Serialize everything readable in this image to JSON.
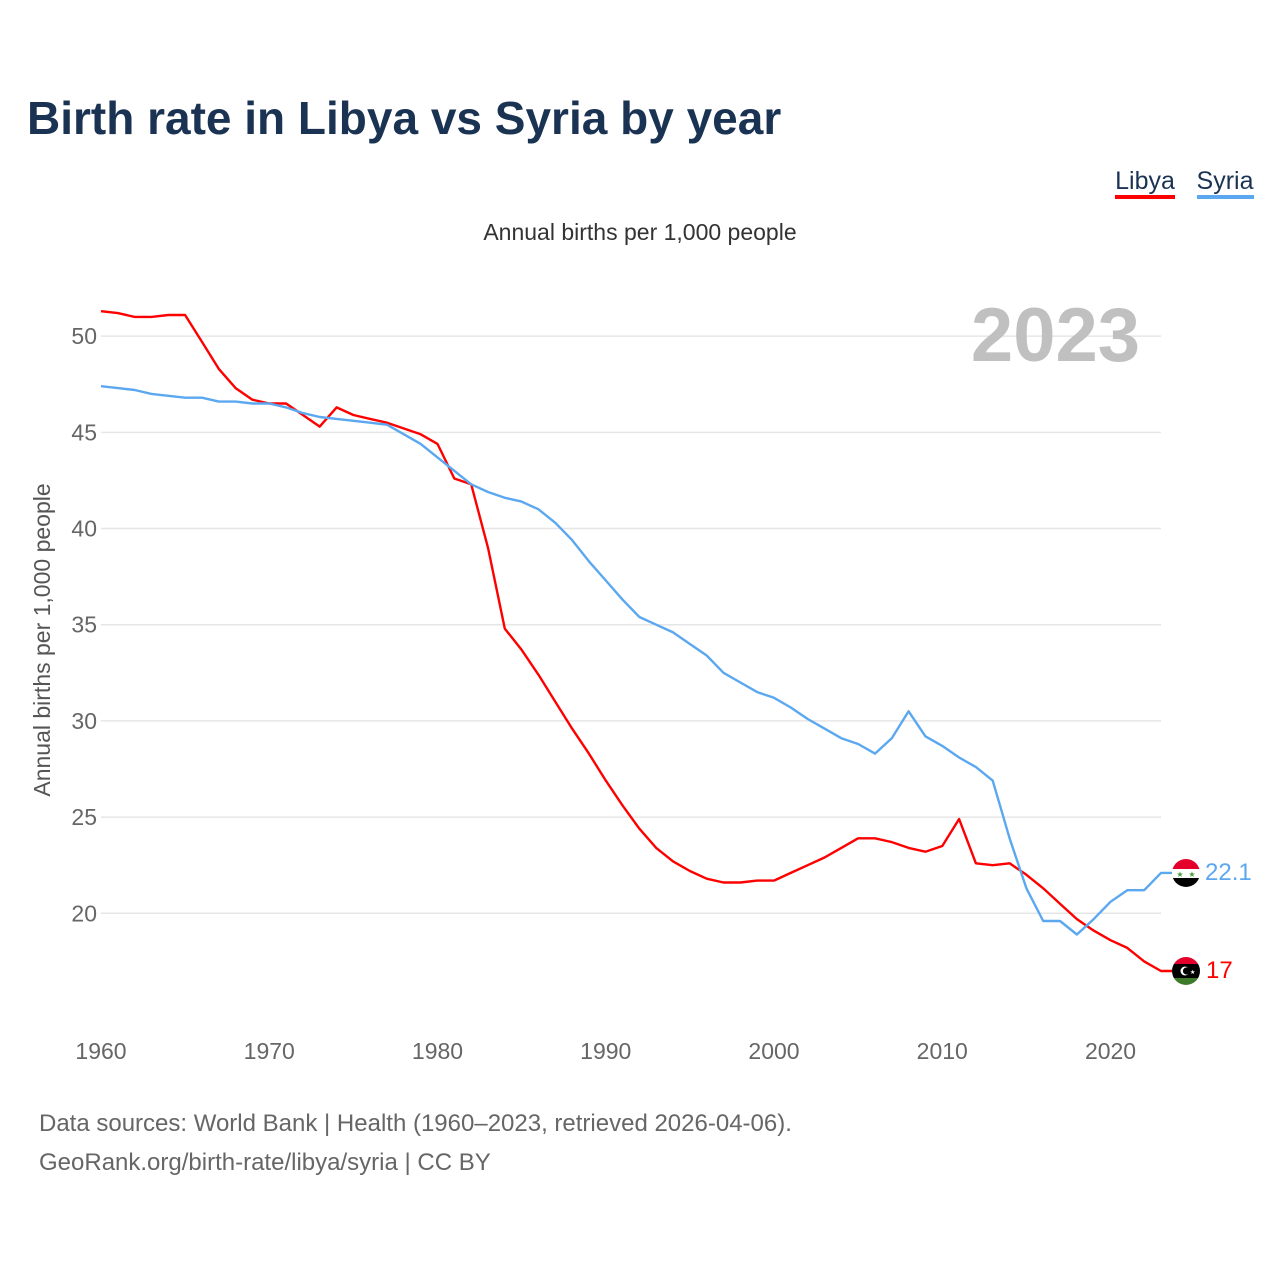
{
  "chart_data": {
    "type": "line",
    "title": "Birth rate in Libya vs Syria by year",
    "subtitle": "Annual births per 1,000 people",
    "ylabel": "Annual births per 1,000 people",
    "xlabel": "",
    "year_label": "2023",
    "xlim": [
      1960,
      2023
    ],
    "ylim": [
      15,
      52.4
    ],
    "x_ticks": [
      1960,
      1970,
      1980,
      1990,
      2000,
      2010,
      2020
    ],
    "y_ticks": [
      20,
      25,
      30,
      35,
      40,
      45,
      50
    ],
    "grid": true,
    "legend_position": "top-right",
    "x": [
      1960,
      1961,
      1962,
      1963,
      1964,
      1965,
      1966,
      1967,
      1968,
      1969,
      1970,
      1971,
      1972,
      1973,
      1974,
      1975,
      1976,
      1977,
      1978,
      1979,
      1980,
      1981,
      1982,
      1983,
      1984,
      1985,
      1986,
      1987,
      1988,
      1989,
      1990,
      1991,
      1992,
      1993,
      1994,
      1995,
      1996,
      1997,
      1998,
      1999,
      2000,
      2001,
      2002,
      2003,
      2004,
      2005,
      2006,
      2007,
      2008,
      2009,
      2010,
      2011,
      2012,
      2013,
      2014,
      2015,
      2016,
      2017,
      2018,
      2019,
      2020,
      2021,
      2022,
      2023
    ],
    "series": [
      {
        "name": "Libya",
        "color": "#ff0000",
        "end_label": "17",
        "values": [
          51.3,
          51.2,
          51.0,
          51.0,
          51.1,
          51.1,
          49.7,
          48.3,
          47.3,
          46.7,
          46.5,
          46.5,
          45.9,
          45.3,
          46.3,
          45.9,
          45.7,
          45.5,
          45.2,
          44.9,
          44.4,
          42.6,
          42.3,
          39.0,
          34.8,
          33.7,
          32.4,
          31.0,
          29.6,
          28.3,
          26.9,
          25.6,
          24.4,
          23.4,
          22.7,
          22.2,
          21.8,
          21.6,
          21.6,
          21.7,
          21.7,
          22.1,
          22.5,
          22.9,
          23.4,
          23.9,
          23.9,
          23.7,
          23.4,
          23.2,
          23.5,
          24.9,
          22.6,
          22.5,
          22.6,
          22.0,
          21.3,
          20.5,
          19.7,
          19.1,
          18.6,
          18.2,
          17.5,
          17.0
        ]
      },
      {
        "name": "Syria",
        "color": "#5ba8f0",
        "end_label": "22.1",
        "values": [
          47.4,
          47.3,
          47.2,
          47.0,
          46.9,
          46.8,
          46.8,
          46.6,
          46.6,
          46.5,
          46.5,
          46.3,
          46.0,
          45.8,
          45.7,
          45.6,
          45.5,
          45.4,
          44.9,
          44.4,
          43.7,
          43.0,
          42.3,
          41.9,
          41.6,
          41.4,
          41.0,
          40.3,
          39.4,
          38.3,
          37.3,
          36.3,
          35.4,
          35.0,
          34.6,
          34.0,
          33.4,
          32.5,
          32.0,
          31.5,
          31.2,
          30.7,
          30.1,
          29.6,
          29.1,
          28.8,
          28.3,
          29.1,
          30.5,
          29.2,
          28.7,
          28.1,
          27.6,
          26.9,
          23.9,
          21.3,
          19.6,
          19.6,
          18.9,
          19.7,
          20.6,
          21.2,
          21.2,
          22.1
        ]
      }
    ]
  },
  "footer": {
    "line1": "Data sources: World Bank | Health (1960–2023, retrieved 2026-04-06).",
    "line2": "GeoRank.org/birth-rate/libya/syria | CC BY"
  }
}
